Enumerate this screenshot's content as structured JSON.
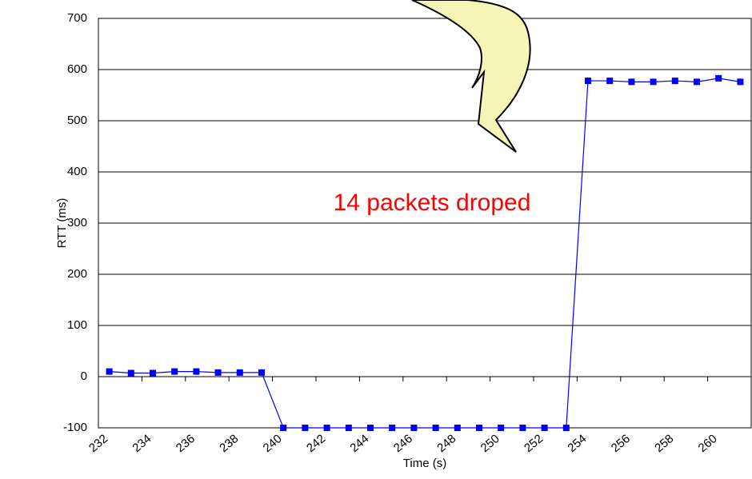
{
  "chart_data": {
    "type": "line",
    "annotation": "14 packets droped",
    "ylabel": "RTT (ms)",
    "xlabel": "Time (s)",
    "x": [
      232.5,
      233.5,
      234.5,
      235.5,
      236.5,
      237.5,
      238.5,
      239.5,
      240.5,
      241.5,
      242.5,
      243.5,
      244.5,
      245.5,
      246.5,
      247.5,
      248.5,
      249.5,
      250.5,
      251.5,
      252.5,
      253.5,
      254.5,
      255.5,
      256.5,
      257.5,
      258.5,
      259.5,
      260.5,
      261.5
    ],
    "series": [
      {
        "color": "#0000ff",
        "values": [
          10,
          7,
          7,
          10,
          10,
          8,
          8,
          8,
          -100,
          -100,
          -100,
          -100,
          -100,
          -100,
          -100,
          -100,
          -100,
          -100,
          -100,
          -100,
          -100,
          -100,
          578,
          578,
          576,
          576,
          578,
          576,
          583,
          576
        ]
      }
    ],
    "xlim": [
      232,
      262
    ],
    "xticks": [
      232,
      234,
      236,
      238,
      240,
      242,
      244,
      246,
      248,
      250,
      252,
      254,
      256,
      258,
      260
    ],
    "ylim": [
      -100,
      700
    ],
    "yticks": [
      -100,
      0,
      100,
      200,
      300,
      400,
      500,
      600,
      700
    ],
    "grid": true
  }
}
